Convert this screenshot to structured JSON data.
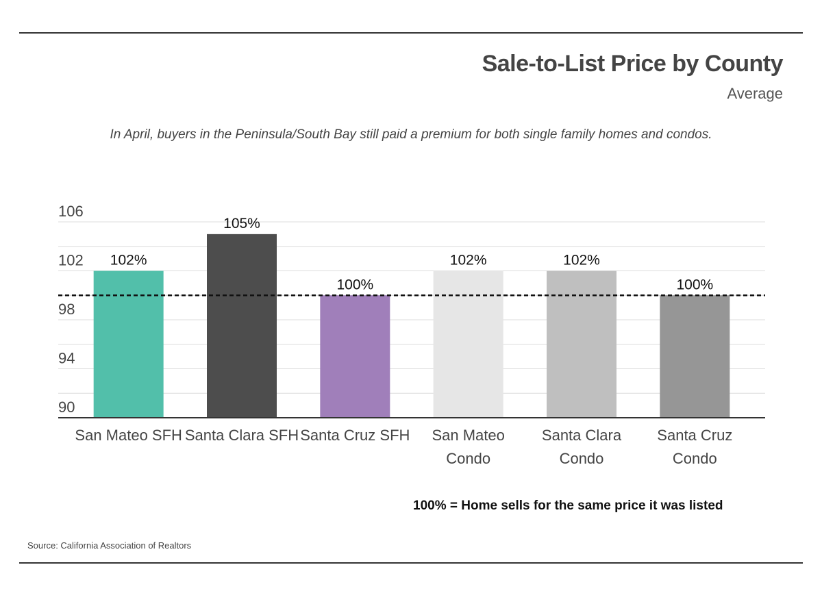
{
  "header": {
    "title": "Sale-to-List Price by County",
    "subtitle": "Average"
  },
  "caption": "In April, buyers in the Peninsula/South Bay still paid a premium for both single family homes and condos.",
  "note": "100% = Home sells for the same price it was listed",
  "source": "Source:  California Association of Realtors",
  "chart_data": {
    "type": "bar",
    "categories": [
      "San Mateo SFH",
      "Santa Clara SFH",
      "Santa Cruz SFH",
      "San Mateo Condo",
      "Santa Clara Condo",
      "Santa Cruz Condo"
    ],
    "category_lines": [
      [
        "San Mateo SFH"
      ],
      [
        "Santa Clara SFH"
      ],
      [
        "Santa Cruz SFH"
      ],
      [
        "San Mateo",
        "Condo"
      ],
      [
        "Santa Clara",
        "Condo"
      ],
      [
        "Santa Cruz",
        "Condo"
      ]
    ],
    "values": [
      102,
      105,
      100,
      102,
      102,
      100
    ],
    "data_labels": [
      "102%",
      "105%",
      "100%",
      "102%",
      "102%",
      "100%"
    ],
    "colors": [
      "#52bfaa",
      "#4d4d4d",
      "#a07fba",
      "#e6e6e6",
      "#bfbfbf",
      "#969696"
    ],
    "ylim": [
      90,
      106
    ],
    "yticks": [
      90,
      94,
      98,
      102,
      106
    ],
    "reference_line": 100,
    "grid": true
  }
}
